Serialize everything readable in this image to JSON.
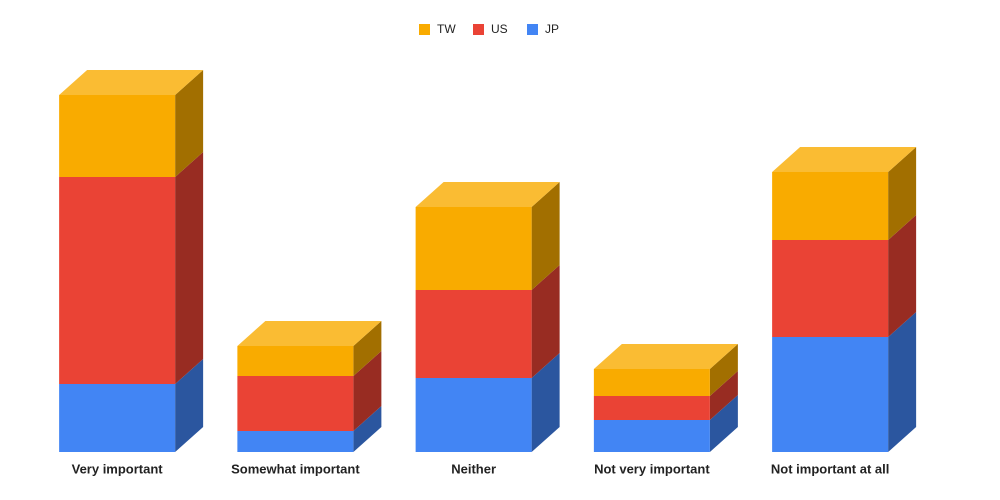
{
  "chart_data": {
    "type": "bar3d-stacked",
    "categories": [
      "Very important",
      "Somewhat important",
      "Neither",
      "Not very important",
      "Not important at all"
    ],
    "series": [
      {
        "name": "TW",
        "color": "#f9ab00",
        "values": [
          82,
          30,
          83,
          27,
          68
        ]
      },
      {
        "name": "US",
        "color": "#ea4335",
        "values": [
          207,
          55,
          88,
          24,
          97
        ]
      },
      {
        "name": "JP",
        "color": "#4285f4",
        "values": [
          68,
          21,
          74,
          32,
          115
        ]
      }
    ],
    "legend": "top"
  }
}
